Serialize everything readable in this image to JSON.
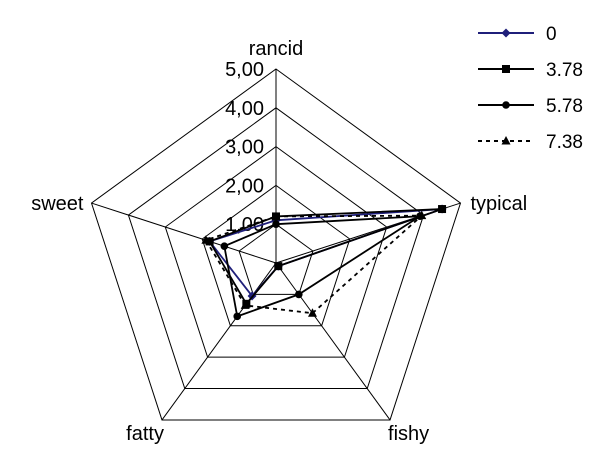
{
  "chart_data": {
    "type": "radar",
    "axes": [
      "rancid",
      "typical",
      "fishy",
      "fatty",
      "sweet"
    ],
    "scale": {
      "min": 0,
      "max": 5,
      "ticks": [
        "1,00",
        "2,00",
        "3,00",
        "4,00",
        "5,00"
      ]
    },
    "series": [
      {
        "name": "0",
        "values": [
          1.1,
          4.5,
          0.1,
          1.05,
          1.8
        ],
        "color": "#1f1f7a",
        "dash": "",
        "marker": "diamond"
      },
      {
        "name": "3.78",
        "values": [
          1.2,
          4.5,
          0.1,
          1.3,
          1.8
        ],
        "color": "#000000",
        "dash": "",
        "marker": "square"
      },
      {
        "name": "5.78",
        "values": [
          1.0,
          3.9,
          1.0,
          1.7,
          1.4
        ],
        "color": "#000000",
        "dash": "",
        "marker": "circle"
      },
      {
        "name": "7.38",
        "values": [
          1.2,
          3.95,
          1.6,
          1.35,
          1.9
        ],
        "color": "#000000",
        "dash": "4 4",
        "marker": "triangle"
      }
    ],
    "legend_position": "top-right"
  }
}
